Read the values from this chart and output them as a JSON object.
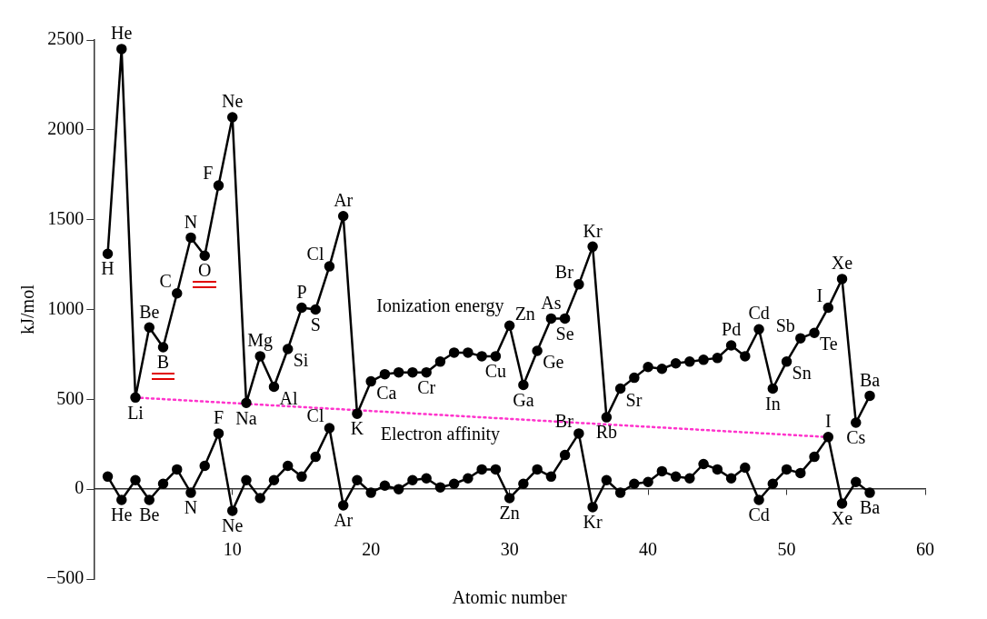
{
  "chart_data": {
    "type": "line",
    "xlabel": "Atomic number",
    "ylabel": "kJ/mol",
    "x": [
      1,
      2,
      3,
      4,
      5,
      6,
      7,
      8,
      9,
      10,
      11,
      12,
      13,
      14,
      15,
      16,
      17,
      18,
      19,
      20,
      21,
      22,
      23,
      24,
      25,
      26,
      27,
      28,
      29,
      30,
      31,
      32,
      33,
      34,
      35,
      36,
      37,
      38,
      39,
      40,
      41,
      42,
      43,
      44,
      45,
      46,
      47,
      48,
      49,
      50,
      51,
      52,
      53,
      54,
      55,
      56
    ],
    "series": [
      {
        "name": "Ionization energy",
        "color": "#000000",
        "marker": "circle",
        "line_style": "solid",
        "values": [
          1310,
          2450,
          510,
          900,
          790,
          1090,
          1400,
          1300,
          1690,
          2070,
          480,
          740,
          570,
          780,
          1010,
          1000,
          1240,
          1520,
          420,
          600,
          640,
          650,
          650,
          650,
          710,
          760,
          760,
          740,
          740,
          910,
          580,
          770,
          950,
          950,
          1140,
          1350,
          400,
          560,
          620,
          680,
          670,
          700,
          710,
          720,
          730,
          800,
          740,
          890,
          560,
          710,
          840,
          870,
          1010,
          1170,
          370,
          520
        ]
      },
      {
        "name": "Electron affinity",
        "color": "#000000",
        "marker": "circle",
        "line_style": "solid",
        "values": [
          70,
          -60,
          50,
          -60,
          30,
          110,
          -20,
          130,
          310,
          -120,
          50,
          -50,
          50,
          130,
          70,
          180,
          340,
          -90,
          50,
          -20,
          20,
          0,
          50,
          60,
          10,
          30,
          60,
          110,
          110,
          -50,
          30,
          110,
          70,
          190,
          310,
          -100,
          50,
          -20,
          30,
          40,
          100,
          70,
          60,
          140,
          110,
          60,
          120,
          -60,
          30,
          110,
          90,
          180,
          290,
          -80,
          40,
          -20
        ]
      },
      {
        "type": "line",
        "color": "#ff33cc",
        "marker": "none",
        "line_style": "dotted",
        "x": [
          3,
          53
        ],
        "values": [
          510,
          290
        ]
      }
    ],
    "xlim": [
      0,
      60
    ],
    "xticks": [
      10,
      20,
      30,
      40,
      50,
      60
    ],
    "ylim": [
      -500,
      2500
    ],
    "yticks": [
      -500,
      0,
      500,
      1000,
      1500,
      2000,
      2500
    ],
    "annotations": [
      {
        "text": "H",
        "x": 1,
        "y": 1310
      },
      {
        "text": "He",
        "x": 2,
        "y": 2450
      },
      {
        "text": "Li",
        "x": 3,
        "y": 510
      },
      {
        "text": "Be",
        "x": 4,
        "y": 900
      },
      {
        "text": "B",
        "x": 5,
        "y": 790
      },
      {
        "text": "C",
        "x": 6,
        "y": 1090
      },
      {
        "text": "N",
        "x": 7,
        "y": 1400
      },
      {
        "text": "O",
        "x": 8,
        "y": 1300
      },
      {
        "text": "F",
        "x": 9,
        "y": 1690
      },
      {
        "text": "Ne",
        "x": 10,
        "y": 2070
      },
      {
        "text": "Na",
        "x": 11,
        "y": 480
      },
      {
        "text": "Mg",
        "x": 12,
        "y": 740
      },
      {
        "text": "Al",
        "x": 13,
        "y": 570
      },
      {
        "text": "Si",
        "x": 14,
        "y": 780
      },
      {
        "text": "P",
        "x": 15,
        "y": 1010
      },
      {
        "text": "S",
        "x": 16,
        "y": 1000
      },
      {
        "text": "Cl",
        "x": 17,
        "y": 1240
      },
      {
        "text": "Ar",
        "x": 18,
        "y": 1520
      },
      {
        "text": "K",
        "x": 19,
        "y": 420
      },
      {
        "text": "Ca",
        "x": 20,
        "y": 600
      },
      {
        "text": "Cr",
        "x": 24,
        "y": 650
      },
      {
        "text": "Cu",
        "x": 29,
        "y": 740
      },
      {
        "text": "Zn",
        "x": 30,
        "y": 910
      },
      {
        "text": "Ga",
        "x": 31,
        "y": 580
      },
      {
        "text": "Ge",
        "x": 32,
        "y": 770
      },
      {
        "text": "As",
        "x": 33,
        "y": 950
      },
      {
        "text": "Se",
        "x": 34,
        "y": 950
      },
      {
        "text": "Br",
        "x": 35,
        "y": 1140
      },
      {
        "text": "Kr",
        "x": 36,
        "y": 1350
      },
      {
        "text": "Rb",
        "x": 37,
        "y": 400
      },
      {
        "text": "Sr",
        "x": 38,
        "y": 560
      },
      {
        "text": "Pd",
        "x": 46,
        "y": 800
      },
      {
        "text": "Cd",
        "x": 48,
        "y": 890
      },
      {
        "text": "In",
        "x": 49,
        "y": 560
      },
      {
        "text": "Sn",
        "x": 50,
        "y": 710
      },
      {
        "text": "Sb",
        "x": 51,
        "y": 840
      },
      {
        "text": "Te",
        "x": 52,
        "y": 870
      },
      {
        "text": "I",
        "x": 53,
        "y": 1010
      },
      {
        "text": "Xe",
        "x": 54,
        "y": 1170
      },
      {
        "text": "Cs",
        "x": 55,
        "y": 370
      },
      {
        "text": "Ba",
        "x": 56,
        "y": 520
      },
      {
        "text": "He",
        "x": 2,
        "y": -60
      },
      {
        "text": "Be",
        "x": 4,
        "y": -60
      },
      {
        "text": "N",
        "x": 7,
        "y": -20
      },
      {
        "text": "F",
        "x": 9,
        "y": 310
      },
      {
        "text": "Ne",
        "x": 10,
        "y": -120
      },
      {
        "text": "Cl",
        "x": 17,
        "y": 340
      },
      {
        "text": "Ar",
        "x": 18,
        "y": -90
      },
      {
        "text": "Zn",
        "x": 30,
        "y": -50
      },
      {
        "text": "Br",
        "x": 35,
        "y": 310
      },
      {
        "text": "Kr",
        "x": 36,
        "y": -100
      },
      {
        "text": "Cd",
        "x": 48,
        "y": -60
      },
      {
        "text": "I",
        "x": 53,
        "y": 290
      },
      {
        "text": "Xe",
        "x": 54,
        "y": -80
      },
      {
        "text": "Ba",
        "x": 56,
        "y": -20
      }
    ]
  }
}
